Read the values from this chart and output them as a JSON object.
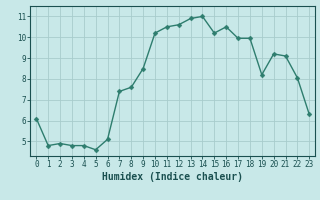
{
  "x": [
    0,
    1,
    2,
    3,
    4,
    5,
    6,
    7,
    8,
    9,
    10,
    11,
    12,
    13,
    14,
    15,
    16,
    17,
    18,
    19,
    20,
    21,
    22,
    23
  ],
  "y": [
    6.1,
    4.8,
    4.9,
    4.8,
    4.8,
    4.6,
    5.1,
    7.4,
    7.6,
    8.5,
    10.2,
    10.5,
    10.6,
    10.9,
    11.0,
    10.2,
    10.5,
    9.95,
    9.95,
    8.2,
    9.2,
    9.1,
    8.05,
    6.3
  ],
  "line_color": "#2e7d6e",
  "marker_color": "#2e7d6e",
  "bg_color": "#c8e8e8",
  "grid_color": "#a8cccc",
  "xlabel": "Humidex (Indice chaleur)",
  "xlim": [
    -0.5,
    23.5
  ],
  "ylim": [
    4.3,
    11.5
  ],
  "yticks": [
    5,
    6,
    7,
    8,
    9,
    10,
    11
  ],
  "xticks": [
    0,
    1,
    2,
    3,
    4,
    5,
    6,
    7,
    8,
    9,
    10,
    11,
    12,
    13,
    14,
    15,
    16,
    17,
    18,
    19,
    20,
    21,
    22,
    23
  ],
  "tick_label_color": "#1a5050",
  "axis_color": "#1a5050",
  "tick_fontsize": 5.5,
  "xlabel_fontsize": 7.0,
  "line_width": 1.0,
  "marker_size": 2.5
}
